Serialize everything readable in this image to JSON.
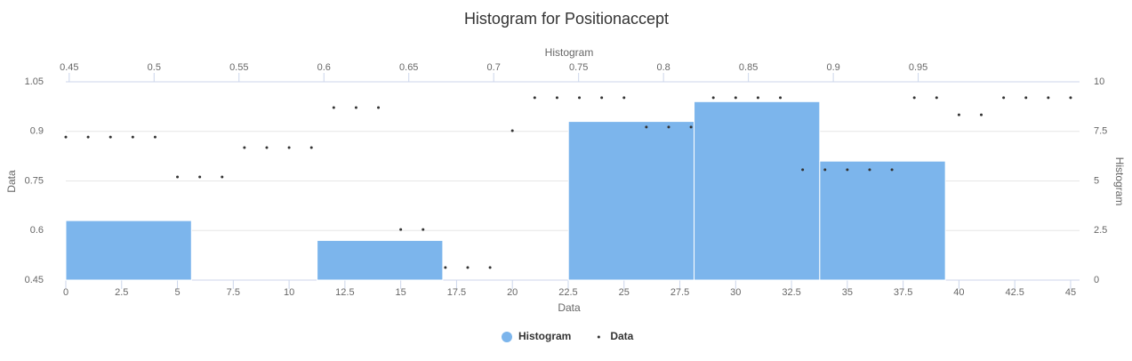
{
  "chart_data": {
    "type": "histogram",
    "title": "Histogram for Positionaccept",
    "x_axis_title": "Data",
    "x2_axis_title": "Histogram",
    "y_axis_title": "Data",
    "y2_axis_title": "Histogram",
    "xlim": [
      0,
      45.4
    ],
    "xticks": [
      0,
      2.5,
      5,
      7.5,
      10,
      12.5,
      15,
      17.5,
      20,
      22.5,
      25,
      27.5,
      30,
      32.5,
      35,
      37.5,
      40,
      42.5,
      45
    ],
    "x2lim": [
      0.448,
      1.045
    ],
    "x2ticks": [
      0.45,
      0.5,
      0.55,
      0.6,
      0.65,
      0.7,
      0.75,
      0.8,
      0.85,
      0.9,
      0.95
    ],
    "ylim": [
      0.45,
      1.05
    ],
    "yticks": [
      0.45,
      0.6,
      0.75,
      0.9,
      1.05
    ],
    "y2lim": [
      0,
      10
    ],
    "y2ticks": [
      0,
      2.5,
      5,
      7.5,
      10
    ],
    "grid": true,
    "legend": "bottom",
    "series": [
      {
        "name": "Histogram",
        "type": "histogram",
        "color": "#7cb5ec",
        "axis": "y2",
        "bins": [
          0.448,
          0.522,
          0.596,
          0.67,
          0.744,
          0.818,
          0.892,
          0.966
        ],
        "values": [
          3,
          0,
          2,
          0,
          8,
          9,
          6
        ]
      },
      {
        "name": "Data",
        "type": "scatter",
        "color": "#333333",
        "x": [
          0,
          1,
          2,
          3,
          4,
          5,
          6,
          7,
          8,
          9,
          10,
          11,
          12,
          13,
          14,
          15,
          16,
          17,
          18,
          19,
          20,
          21,
          22,
          23,
          24,
          25,
          26,
          27,
          28,
          29,
          30,
          31,
          32,
          33,
          34,
          35,
          36,
          37,
          38,
          39,
          40,
          41,
          42,
          43,
          44,
          45
        ],
        "values": [
          0.883,
          0.883,
          0.883,
          0.883,
          0.883,
          0.762,
          0.762,
          0.762,
          0.851,
          0.851,
          0.851,
          0.851,
          0.972,
          0.972,
          0.972,
          0.603,
          0.603,
          0.488,
          0.488,
          0.488,
          0.902,
          1.002,
          1.002,
          1.002,
          1.002,
          1.002,
          0.913,
          0.913,
          0.913,
          1.002,
          1.002,
          1.002,
          1.002,
          0.784,
          0.784,
          0.784,
          0.784,
          0.784,
          1.002,
          1.002,
          0.95,
          0.95,
          1.002,
          1.002,
          1.002,
          1.002
        ]
      }
    ]
  }
}
